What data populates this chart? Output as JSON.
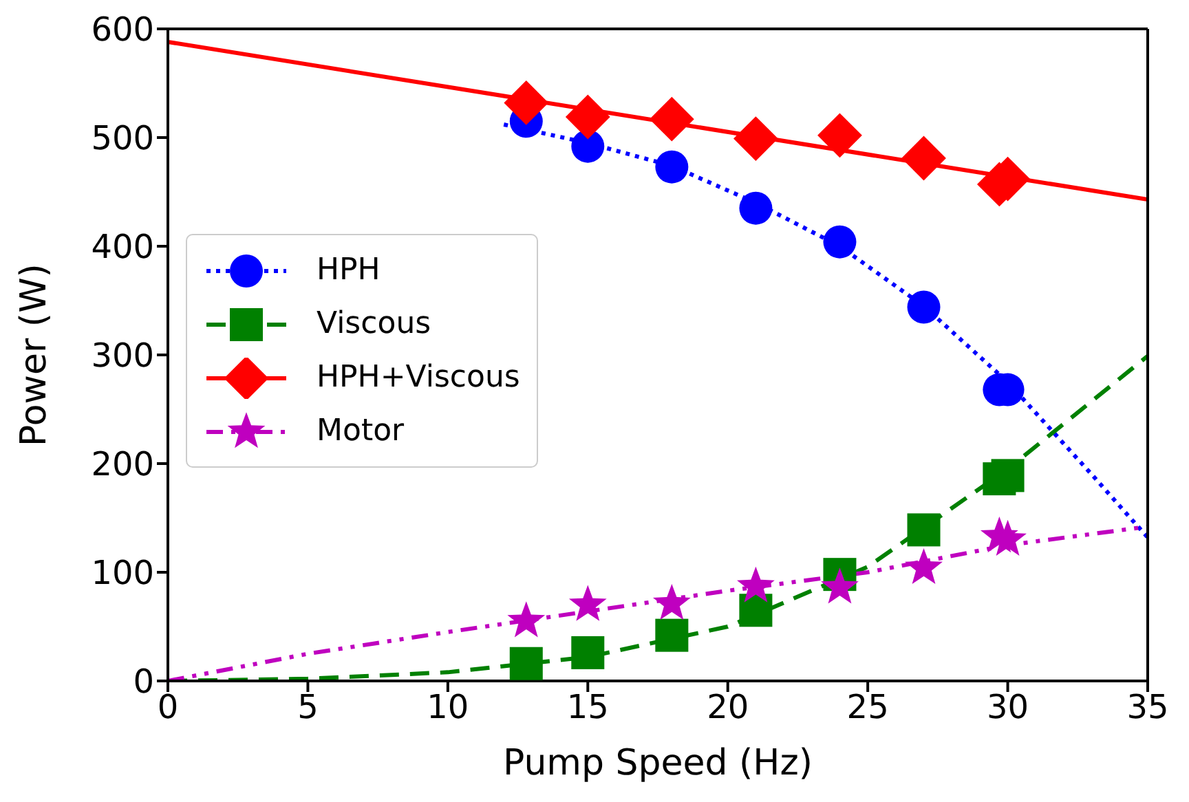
{
  "chart_data": {
    "type": "scatter",
    "xlabel": "Pump Speed (Hz)",
    "ylabel": "Power (W)",
    "xlim": [
      0,
      35
    ],
    "xticks": [
      0,
      5,
      10,
      15,
      20,
      25,
      30,
      35
    ],
    "ylim": [
      0,
      600
    ],
    "yticks": [
      0,
      100,
      200,
      300,
      400,
      500,
      600
    ],
    "legend": "left",
    "series": [
      {
        "name": "HPH",
        "marker": "circle",
        "color": "#0000ff",
        "x": [
          12.8,
          15,
          18,
          21,
          24,
          27,
          29.7,
          30
        ],
        "values": [
          515,
          492,
          473,
          435,
          404,
          344,
          268,
          268
        ]
      },
      {
        "name": "Viscous",
        "marker": "square",
        "color": "#008000",
        "x": [
          12.8,
          15,
          18,
          21,
          24,
          27,
          29.7,
          30
        ],
        "values": [
          16,
          26,
          42,
          65,
          98,
          139,
          186,
          189
        ]
      },
      {
        "name": "HPH+Viscous",
        "marker": "diamond",
        "color": "#ff0000",
        "x": [
          12.8,
          15,
          18,
          21,
          24,
          27,
          29.7,
          30
        ],
        "values": [
          532,
          519,
          517,
          499,
          502,
          481,
          457,
          462
        ]
      },
      {
        "name": "Motor",
        "marker": "star",
        "color": "#bf00bf",
        "x": [
          12.8,
          15,
          18,
          21,
          24,
          27,
          29.7,
          30
        ],
        "values": [
          55,
          70,
          71,
          87,
          86,
          104,
          133,
          130
        ]
      },
      {
        "type": "line",
        "line_style": "dotted",
        "marker": "none",
        "color": "#0000ff",
        "x": [
          12,
          15,
          18,
          21,
          24,
          27,
          30,
          33,
          35
        ],
        "values": [
          512,
          495,
          474,
          440,
          400,
          345,
          275,
          190,
          132
        ]
      },
      {
        "type": "line",
        "line_style": "dashed",
        "marker": "none",
        "color": "#008000",
        "x": [
          0,
          5,
          10,
          15,
          20,
          25,
          30,
          35
        ],
        "values": [
          0,
          2,
          8,
          22,
          50,
          105,
          195,
          299
        ]
      },
      {
        "type": "line",
        "line_style": "solid",
        "marker": "none",
        "color": "#ff0000",
        "x": [
          0,
          35
        ],
        "values": [
          588,
          443
        ]
      },
      {
        "type": "line",
        "line_style": "dashdot",
        "marker": "none",
        "color": "#bf00bf",
        "x": [
          0,
          5,
          10,
          15,
          20,
          25,
          30,
          35
        ],
        "values": [
          0,
          25,
          45,
          64,
          83,
          100,
          125,
          142
        ]
      }
    ]
  }
}
